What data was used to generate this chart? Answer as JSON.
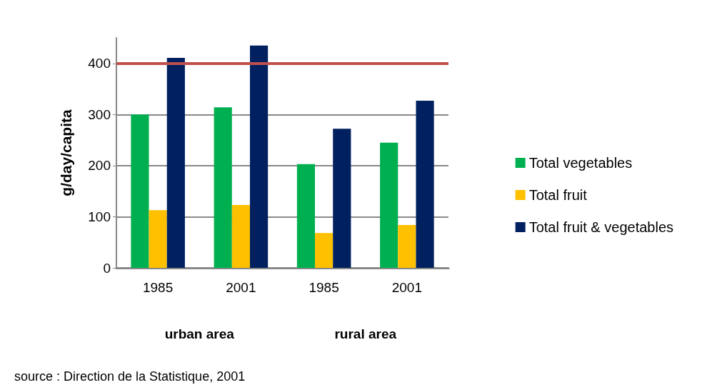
{
  "chart_data": {
    "type": "bar",
    "ylabel": "g/day/capita",
    "categories": [
      "1985",
      "2001",
      "1985",
      "2001"
    ],
    "series": [
      {
        "name": "Total vegetables",
        "color": "#00b050",
        "values": [
          300,
          314,
          203,
          245
        ]
      },
      {
        "name": "Total fruit",
        "color": "#ffc000",
        "values": [
          113,
          123,
          68,
          84
        ]
      },
      {
        "name": "Total fruit & vegetables",
        "color": "#002060",
        "values": [
          411,
          435,
          272,
          327
        ]
      }
    ],
    "ylim": [
      0,
      450
    ],
    "yticks": [
      0,
      100,
      200,
      300,
      400
    ],
    "grid": "y",
    "legend": "right",
    "ref_lines": [
      {
        "axis": "y",
        "value": 400,
        "color": "#c0504d"
      }
    ],
    "annotations": [
      "urban area",
      "rural area",
      "source : Direction de la Statistique, 2001"
    ]
  }
}
